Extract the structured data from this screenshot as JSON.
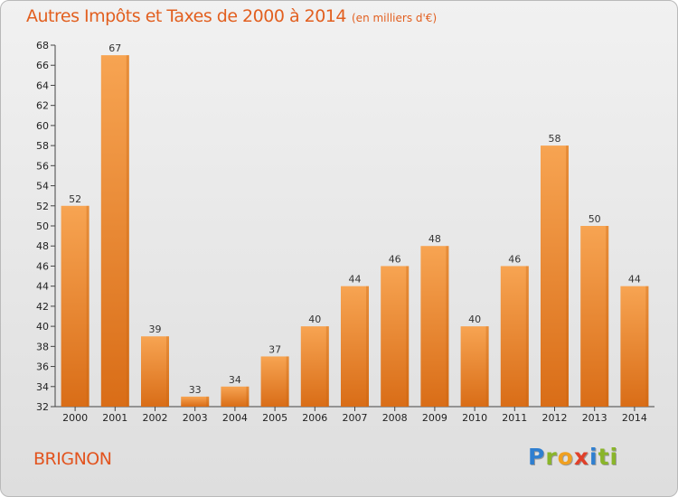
{
  "title": {
    "main": "Autres Impôts et Taxes de 2000 à 2014",
    "unit": "(en milliers d'€)"
  },
  "place": "BRIGNON",
  "logo": {
    "letters": [
      "P",
      "r",
      "o",
      "x",
      "i",
      "ti"
    ]
  },
  "colors": {
    "bar": "#f08c2a",
    "bar_light": "#f7a452",
    "bar_dark": "#d96d17",
    "title": "#e25f1f"
  },
  "chart_data": {
    "type": "bar",
    "title": "Autres Impôts et Taxes de 2000 à 2014",
    "subtitle": "(en milliers d'€)",
    "xlabel": "",
    "ylabel": "",
    "categories": [
      "2000",
      "2001",
      "2002",
      "2003",
      "2004",
      "2005",
      "2006",
      "2007",
      "2008",
      "2009",
      "2010",
      "2011",
      "2012",
      "2013",
      "2014"
    ],
    "values": [
      52,
      67,
      39,
      33,
      34,
      37,
      40,
      44,
      46,
      48,
      40,
      46,
      58,
      50,
      44
    ],
    "data_labels": [
      "52",
      "67",
      "39",
      "33",
      "34",
      "37",
      "40",
      "44",
      "46",
      "48",
      "40",
      "46",
      "58",
      "50",
      "44"
    ],
    "ylim": [
      32,
      68
    ],
    "yticks": [
      "32",
      "34",
      "36",
      "38",
      "40",
      "42",
      "44",
      "46",
      "48",
      "50",
      "52",
      "54",
      "56",
      "58",
      "60",
      "62",
      "64",
      "66",
      "68"
    ],
    "grid": false,
    "legend": "none"
  }
}
